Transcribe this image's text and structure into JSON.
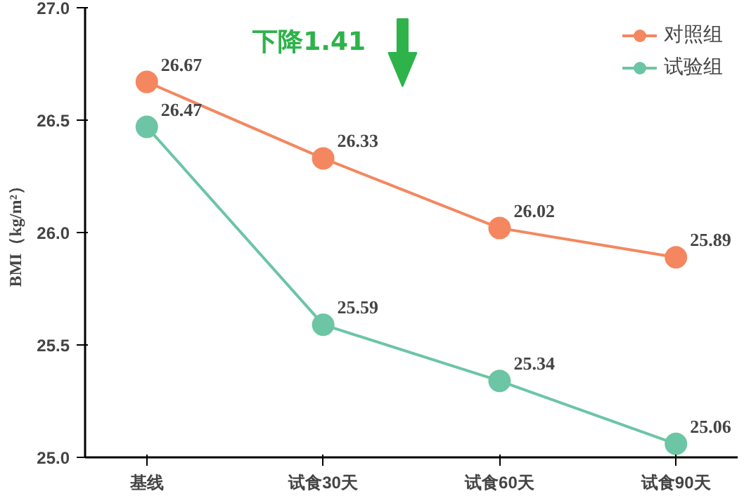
{
  "chart_data": {
    "type": "line",
    "ylabel": "BMI（kg/m²）",
    "categories": [
      "基线",
      "试食30天",
      "试食60天",
      "试食90天"
    ],
    "series": [
      {
        "name": "对照组",
        "color": "#f4875f",
        "values": [
          26.67,
          26.33,
          26.02,
          25.89
        ]
      },
      {
        "name": "试验组",
        "color": "#6cc5a5",
        "values": [
          26.47,
          25.59,
          25.34,
          25.06
        ]
      }
    ],
    "ylim": [
      25.0,
      27.0
    ],
    "yticks": [
      {
        "value": 25,
        "label": "25.0"
      },
      {
        "value": 25.5,
        "label": "25.5"
      },
      {
        "value": 26,
        "label": "26.0"
      },
      {
        "value": 26.5,
        "label": "26.5"
      },
      {
        "value": 27,
        "label": "27.0"
      }
    ],
    "annotations": [
      "下降1.41"
    ],
    "data_labels": true,
    "legend": "top right",
    "grid": false,
    "marker": "circle",
    "line_style": "solid"
  }
}
